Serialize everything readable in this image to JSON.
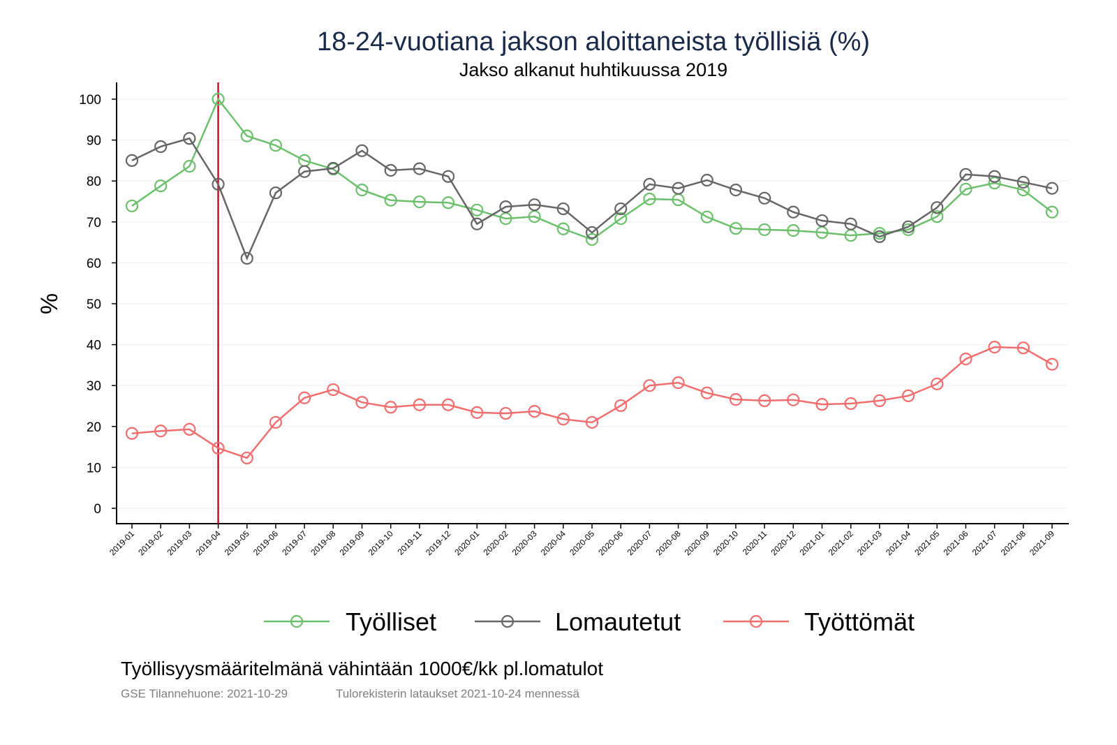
{
  "chart_data": {
    "type": "line",
    "title": "18-24-vuotiana jakson aloittaneista työllisiä (%)",
    "subtitle": "Jakso alkanut huhtikuussa 2019",
    "ylabel": "%",
    "xlabel": "",
    "ylim": [
      0,
      100
    ],
    "yticks": [
      0,
      10,
      20,
      30,
      40,
      50,
      60,
      70,
      80,
      90,
      100
    ],
    "grid": true,
    "legend_position": "bottom",
    "reference_line": {
      "x": "2019-04",
      "color": "#c8102e"
    },
    "x": [
      "2019-01",
      "2019-02",
      "2019-03",
      "2019-04",
      "2019-05",
      "2019-06",
      "2019-07",
      "2019-08",
      "2019-09",
      "2019-10",
      "2019-11",
      "2019-12",
      "2020-01",
      "2020-02",
      "2020-03",
      "2020-04",
      "2020-05",
      "2020-06",
      "2020-07",
      "2020-08",
      "2020-09",
      "2020-10",
      "2020-11",
      "2020-12",
      "2021-01",
      "2021-02",
      "2021-03",
      "2021-04",
      "2021-05",
      "2021-06",
      "2021-07",
      "2021-08",
      "2021-09"
    ],
    "series": [
      {
        "name": "Työlliset",
        "color": "#6cbf6c",
        "values": [
          73.9,
          78.8,
          83.6,
          100,
          91.0,
          88.7,
          85.0,
          82.9,
          77.8,
          75.3,
          74.9,
          74.7,
          72.9,
          70.8,
          71.3,
          68.3,
          65.7,
          70.8,
          75.6,
          75.4,
          71.2,
          68.4,
          68.1,
          67.9,
          67.4,
          66.7,
          67.2,
          68.1,
          71.3,
          78.0,
          79.5,
          77.8,
          72.4
        ]
      },
      {
        "name": "Lomautetut",
        "color": "#666666",
        "values": [
          85.0,
          88.4,
          90.4,
          79.2,
          61.1,
          77.1,
          82.3,
          83.1,
          87.4,
          82.6,
          83.0,
          81.1,
          69.5,
          73.7,
          74.2,
          73.2,
          67.4,
          73.2,
          79.2,
          78.2,
          80.2,
          77.8,
          75.8,
          72.4,
          70.3,
          69.5,
          66.4,
          68.8,
          73.5,
          81.6,
          81.1,
          79.7,
          78.2
        ]
      },
      {
        "name": "Työttömät",
        "color": "#f26d6d",
        "values": [
          18.3,
          18.9,
          19.3,
          14.7,
          12.3,
          21.0,
          27.0,
          29.0,
          25.9,
          24.7,
          25.3,
          25.3,
          23.4,
          23.2,
          23.7,
          21.8,
          21.0,
          25.1,
          30.0,
          30.7,
          28.2,
          26.6,
          26.3,
          26.5,
          25.4,
          25.6,
          26.3,
          27.5,
          30.4,
          36.5,
          39.4,
          39.2,
          35.2
        ]
      }
    ]
  },
  "notes": {
    "definition": "Työllisyysmääritelmänä vähintään 1000€/kk pl.lomatulot",
    "source": "GSE Tilannehuone: 2021-10-29",
    "data_date": "Tulorekisterin lataukset 2021-10-24 mennessä"
  }
}
